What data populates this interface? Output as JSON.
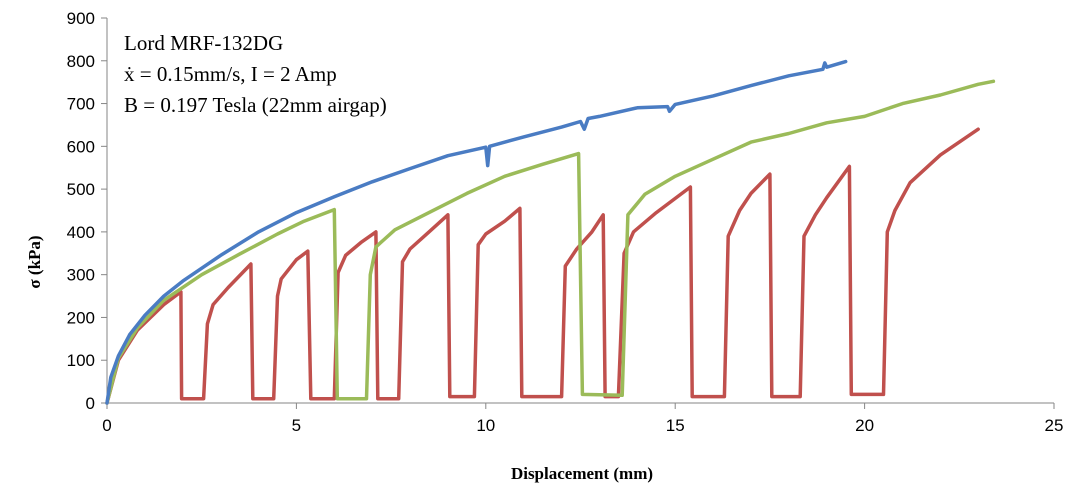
{
  "chart_data": {
    "type": "line",
    "title": "",
    "xlabel": "Displacement (mm)",
    "ylabel": "σ (kPa)",
    "xlim": [
      0,
      25
    ],
    "ylim": [
      0,
      900
    ],
    "xticks": [
      0,
      5,
      10,
      15,
      20,
      25
    ],
    "yticks": [
      0,
      100,
      200,
      300,
      400,
      500,
      600,
      700,
      800,
      900
    ],
    "grid": false,
    "legend": "none",
    "annotations": [
      "Lord MRF-132DG",
      "ẋ = 0.15mm/s, I = 2 Amp",
      "B = 0.197 Tesla (22mm airgap)"
    ],
    "series": [
      {
        "color": "#4a7cc3",
        "points": [
          [
            0,
            0
          ],
          [
            0.1,
            60
          ],
          [
            0.3,
            110
          ],
          [
            0.6,
            160
          ],
          [
            1,
            205
          ],
          [
            1.5,
            250
          ],
          [
            2,
            285
          ],
          [
            3,
            345
          ],
          [
            4,
            400
          ],
          [
            5,
            445
          ],
          [
            6,
            482
          ],
          [
            7,
            517
          ],
          [
            8,
            548
          ],
          [
            9,
            578
          ],
          [
            10,
            598
          ],
          [
            10.05,
            555
          ],
          [
            10.1,
            600
          ],
          [
            11,
            622
          ],
          [
            12,
            645
          ],
          [
            12.5,
            658
          ],
          [
            12.6,
            640
          ],
          [
            12.7,
            665
          ],
          [
            13,
            670
          ],
          [
            14,
            690
          ],
          [
            14.8,
            693
          ],
          [
            14.85,
            682
          ],
          [
            15,
            698
          ],
          [
            16,
            718
          ],
          [
            17,
            742
          ],
          [
            18,
            765
          ],
          [
            18.9,
            780
          ],
          [
            18.95,
            795
          ],
          [
            19,
            785
          ],
          [
            19.5,
            798
          ]
        ]
      },
      {
        "color": "#9bbb59",
        "points": [
          [
            0,
            0
          ],
          [
            0.3,
            105
          ],
          [
            0.8,
            175
          ],
          [
            1.5,
            240
          ],
          [
            2.5,
            300
          ],
          [
            3.5,
            348
          ],
          [
            4.5,
            395
          ],
          [
            5.2,
            425
          ],
          [
            6,
            452
          ],
          [
            6.08,
            10
          ],
          [
            6.85,
            10
          ],
          [
            6.95,
            300
          ],
          [
            7.1,
            365
          ],
          [
            7.6,
            405
          ],
          [
            8.5,
            445
          ],
          [
            9.5,
            490
          ],
          [
            10.5,
            530
          ],
          [
            11.5,
            558
          ],
          [
            12.45,
            583
          ],
          [
            12.55,
            20
          ],
          [
            13.6,
            18
          ],
          [
            13.75,
            440
          ],
          [
            14.2,
            488
          ],
          [
            15,
            530
          ],
          [
            16,
            570
          ],
          [
            17,
            610
          ],
          [
            18,
            630
          ],
          [
            19,
            655
          ],
          [
            20,
            670
          ],
          [
            21,
            700
          ],
          [
            22,
            720
          ],
          [
            23,
            745
          ],
          [
            23.4,
            752
          ]
        ]
      },
      {
        "color": "#c0504d",
        "points": [
          [
            0,
            0
          ],
          [
            0.3,
            100
          ],
          [
            0.8,
            170
          ],
          [
            1.5,
            230
          ],
          [
            1.95,
            260
          ],
          [
            1.97,
            10
          ],
          [
            2.55,
            10
          ],
          [
            2.65,
            185
          ],
          [
            2.8,
            230
          ],
          [
            3.2,
            270
          ],
          [
            3.8,
            325
          ],
          [
            3.85,
            10
          ],
          [
            4.4,
            10
          ],
          [
            4.5,
            250
          ],
          [
            4.6,
            290
          ],
          [
            5,
            335
          ],
          [
            5.3,
            355
          ],
          [
            5.38,
            10
          ],
          [
            6,
            10
          ],
          [
            6.1,
            305
          ],
          [
            6.3,
            345
          ],
          [
            6.7,
            375
          ],
          [
            7.1,
            400
          ],
          [
            7.15,
            10
          ],
          [
            7.7,
            10
          ],
          [
            7.8,
            330
          ],
          [
            8,
            360
          ],
          [
            8.5,
            400
          ],
          [
            9,
            440
          ],
          [
            9.05,
            15
          ],
          [
            9.7,
            15
          ],
          [
            9.8,
            370
          ],
          [
            10,
            395
          ],
          [
            10.5,
            425
          ],
          [
            10.9,
            455
          ],
          [
            10.95,
            15
          ],
          [
            12,
            15
          ],
          [
            12.1,
            320
          ],
          [
            12.4,
            360
          ],
          [
            12.8,
            400
          ],
          [
            13.1,
            440
          ],
          [
            13.15,
            15
          ],
          [
            13.5,
            15
          ],
          [
            13.65,
            350
          ],
          [
            13.9,
            400
          ],
          [
            14.5,
            445
          ],
          [
            15.4,
            505
          ],
          [
            15.45,
            15
          ],
          [
            16.3,
            15
          ],
          [
            16.4,
            390
          ],
          [
            16.7,
            450
          ],
          [
            17,
            490
          ],
          [
            17.5,
            535
          ],
          [
            17.55,
            15
          ],
          [
            18.3,
            15
          ],
          [
            18.4,
            390
          ],
          [
            18.7,
            440
          ],
          [
            19,
            480
          ],
          [
            19.6,
            553
          ],
          [
            19.65,
            20
          ],
          [
            20.5,
            20
          ],
          [
            20.6,
            400
          ],
          [
            20.8,
            450
          ],
          [
            21.2,
            515
          ],
          [
            22,
            580
          ],
          [
            23,
            640
          ]
        ]
      }
    ]
  }
}
